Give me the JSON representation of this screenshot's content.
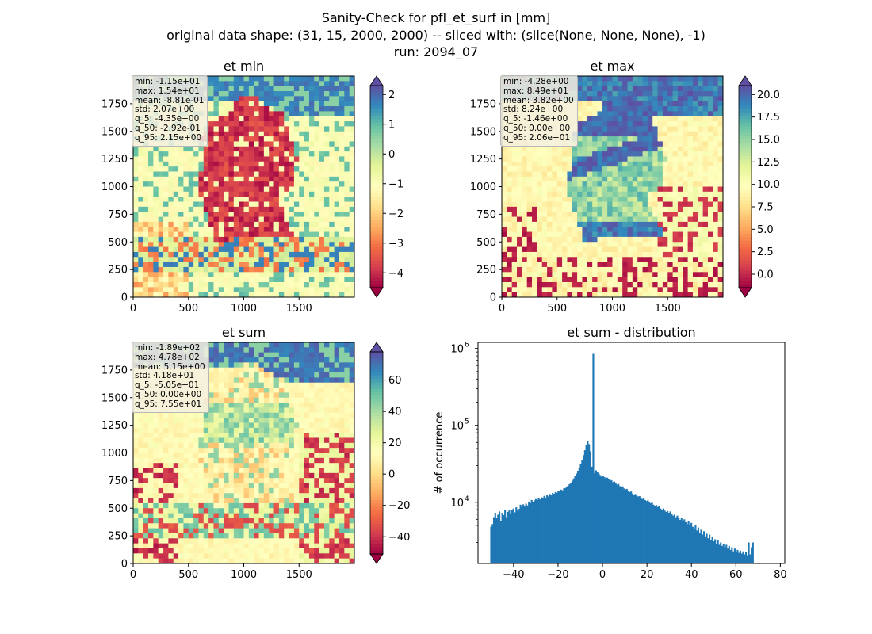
{
  "suptitle": {
    "line1": "Sanity-Check for pfl_et_surf in [mm]",
    "line2": "original data shape: (31, 15, 2000, 2000) -- sliced with: (slice(None, None, None), -1)",
    "line3": "run: 2094_07"
  },
  "colors": {
    "hist_bar": "#1f77b4",
    "cmap": "Spectral"
  },
  "chart_data": [
    {
      "type": "heatmap",
      "title": "et min",
      "xlim": [
        0,
        2000
      ],
      "ylim": [
        0,
        2000
      ],
      "xticks": [
        "0",
        "500",
        "1000",
        "1500"
      ],
      "yticks": [
        "0",
        "250",
        "500",
        "750",
        "1000",
        "1250",
        "1500",
        "1750"
      ],
      "colorbar": {
        "range": [
          -4.5,
          2.3
        ],
        "ticks": [
          "2",
          "1",
          "0",
          "−1",
          "−2",
          "−3",
          "−4"
        ],
        "tick_values": [
          2,
          1,
          0,
          -1,
          -2,
          -3,
          -4
        ],
        "extend": "both"
      },
      "stats": [
        "min: -1.15e+01",
        "max: 1.54e+01",
        "mean: -8.81e-01",
        "std: 2.07e+00",
        "q_5: -4.35e+00",
        "q_50: -2.92e-01",
        "q_95: 2.15e+00"
      ]
    },
    {
      "type": "heatmap",
      "title": "et max",
      "xlim": [
        0,
        2000
      ],
      "ylim": [
        0,
        2000
      ],
      "xticks": [
        "0",
        "500",
        "1000",
        "1500"
      ],
      "yticks": [
        "0",
        "250",
        "500",
        "750",
        "1000",
        "1250",
        "1500",
        "1750"
      ],
      "colorbar": {
        "range": [
          -1.5,
          21
        ],
        "ticks": [
          "20.0",
          "17.5",
          "15.0",
          "12.5",
          "10.0",
          "7.5",
          "5.0",
          "2.5",
          "0.0"
        ],
        "tick_values": [
          20,
          17.5,
          15,
          12.5,
          10,
          7.5,
          5,
          2.5,
          0
        ],
        "extend": "both"
      },
      "stats": [
        "min: -4.28e+00",
        "max: 8.49e+01",
        "mean: 3.82e+00",
        "std: 8.24e+00",
        "q_5: -1.46e+00",
        "q_50: 0.00e+00",
        "q_95: 2.06e+01"
      ]
    },
    {
      "type": "heatmap",
      "title": "et sum",
      "xlim": [
        0,
        2000
      ],
      "ylim": [
        0,
        2000
      ],
      "xticks": [
        "0",
        "500",
        "1000",
        "1500"
      ],
      "yticks": [
        "0",
        "250",
        "500",
        "750",
        "1000",
        "1250",
        "1500",
        "1750"
      ],
      "colorbar": {
        "range": [
          -51,
          78
        ],
        "ticks": [
          "60",
          "40",
          "20",
          "0",
          "−20",
          "−40"
        ],
        "tick_values": [
          60,
          40,
          20,
          0,
          -20,
          -40
        ],
        "extend": "both"
      },
      "stats": [
        "min: -1.89e+02",
        "max: 4.78e+02",
        "mean: 5.15e+00",
        "std: 4.18e+01",
        "q_5: -5.05e+01",
        "q_50: 0.00e+00",
        "q_95: 7.55e+01"
      ]
    },
    {
      "type": "bar",
      "title": "et sum - distribution",
      "ylabel": "# of occurrence",
      "xlabel": "",
      "yscale": "log",
      "xlim": [
        -56,
        82
      ],
      "ylim": [
        1600,
        1200000
      ],
      "xticks": [
        "−40",
        "−20",
        "0",
        "20",
        "40",
        "60",
        "80"
      ],
      "xtick_values": [
        -40,
        -20,
        0,
        20,
        40,
        60,
        80
      ],
      "yticks": [
        {
          "base": "10",
          "exp": "4",
          "value": 10000
        },
        {
          "base": "10",
          "exp": "5",
          "value": 100000
        },
        {
          "base": "10",
          "exp": "6",
          "value": 1000000
        }
      ],
      "bins": {
        "start": -50.5,
        "width": 0.63
      },
      "values": [
        4800,
        5200,
        6400,
        7300,
        6200,
        6900,
        7600,
        5700,
        7300,
        6800,
        7900,
        6400,
        7500,
        8000,
        7000,
        7900,
        8300,
        7400,
        8600,
        7800,
        8200,
        9300,
        8700,
        9400,
        8800,
        9600,
        9100,
        10200,
        9800,
        10700,
        10100,
        10600,
        11000,
        10700,
        11300,
        10900,
        11600,
        11200,
        12100,
        11500,
        12400,
        11900,
        12800,
        12300,
        13200,
        12900,
        13600,
        13300,
        14100,
        13800,
        14600,
        14300,
        15100,
        15300,
        16000,
        16400,
        17200,
        18000,
        19100,
        20400,
        21800,
        23600,
        25700,
        28400,
        31500,
        35800,
        41000,
        47500,
        55000,
        63000,
        57000,
        46000,
        29000,
        850000,
        24000,
        26000,
        25000,
        23500,
        22500,
        21500,
        22000,
        21200,
        20500,
        20900,
        19800,
        19100,
        19400,
        18300,
        18700,
        17600,
        17000,
        17300,
        16200,
        15800,
        16100,
        15100,
        14700,
        14900,
        14000,
        13600,
        13800,
        13000,
        12600,
        12800,
        12200,
        11900,
        12000,
        11400,
        11000,
        11200,
        10700,
        10400,
        10600,
        10000,
        9700,
        9900,
        9300,
        9000,
        9200,
        8700,
        8900,
        8300,
        8000,
        8300,
        7800,
        7500,
        7700,
        7300,
        7600,
        7000,
        6700,
        6900,
        6400,
        6700,
        6200,
        5900,
        6300,
        5700,
        6000,
        5500,
        5200,
        5700,
        5000,
        5400,
        4800,
        4500,
        5000,
        4300,
        4700,
        4000,
        4400,
        3800,
        4200,
        3600,
        3900,
        3400,
        3800,
        3200,
        3500,
        3100,
        3300,
        2900,
        3200,
        2800,
        3000,
        2700,
        2900,
        2600,
        2800,
        2500,
        2700,
        2400,
        2600,
        2300,
        2500,
        2250,
        2400,
        2200,
        2350,
        2150,
        2300,
        2100,
        2250,
        2050,
        3000,
        2100,
        2600,
        3000
      ]
    }
  ]
}
